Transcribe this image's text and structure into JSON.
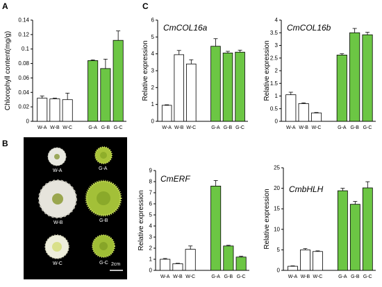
{
  "panels": {
    "a": "A",
    "b": "B",
    "c": "C"
  },
  "colors": {
    "white_bar": "#ffffff",
    "green_bar": "#6cc644",
    "axis": "#000000",
    "photo_bg": "#000000"
  },
  "photo": {
    "labels": [
      "W-A",
      "G-A",
      "W-B",
      "G-B",
      "W-C",
      "G-C"
    ],
    "scale_label": "2cm"
  },
  "chart_data": [
    {
      "type": "bar",
      "title": "",
      "xlabel": "",
      "ylabel": "Chlorophyll content(mg/g)",
      "categories": [
        "W-A",
        "W-B",
        "W-C",
        "G-A",
        "G-B",
        "G-C"
      ],
      "values": [
        0.032,
        0.031,
        0.03,
        0.084,
        0.073,
        0.112
      ],
      "errors": [
        0.003,
        0.001,
        0.009,
        0.001,
        0.013,
        0.013
      ],
      "ylim": [
        0,
        0.14
      ],
      "yticks": [
        "0",
        "0.02",
        "0.04",
        "0.06",
        "0.08",
        "0.1",
        "0.12",
        "0.14"
      ],
      "grid": false
    },
    {
      "type": "bar",
      "title": "CmCOL16a",
      "xlabel": "",
      "ylabel": "Relative expression",
      "categories": [
        "W-A",
        "W-B",
        "W-C",
        "G-A",
        "G-B",
        "G-C"
      ],
      "values": [
        0.95,
        3.95,
        3.4,
        4.45,
        4.05,
        4.1
      ],
      "errors": [
        0.03,
        0.25,
        0.25,
        0.45,
        0.1,
        0.12
      ],
      "ylim": [
        0,
        6
      ],
      "yticks": [
        "0",
        "1",
        "2",
        "3",
        "4",
        "5",
        "6"
      ],
      "grid": false
    },
    {
      "type": "bar",
      "title": "CmCOL16b",
      "xlabel": "",
      "ylabel": "Relative expression",
      "categories": [
        "W-A",
        "W-B",
        "W-C",
        "G-A",
        "G-B",
        "G-C"
      ],
      "values": [
        1.05,
        0.7,
        0.33,
        2.62,
        3.5,
        3.42
      ],
      "errors": [
        0.1,
        0.03,
        0.02,
        0.05,
        0.17,
        0.1
      ],
      "ylim": [
        0,
        4
      ],
      "yticks": [
        "0",
        "0.5",
        "1",
        "1.5",
        "2",
        "2.5",
        "3",
        "3.5",
        "4"
      ],
      "grid": false
    },
    {
      "type": "bar",
      "title": "CmERF",
      "xlabel": "",
      "ylabel": "Relative expression",
      "categories": [
        "W-A",
        "W-B",
        "W-C",
        "G-A",
        "G-B",
        "G-C"
      ],
      "values": [
        1.0,
        0.6,
        1.9,
        7.6,
        2.2,
        1.2
      ],
      "errors": [
        0.07,
        0.04,
        0.3,
        0.5,
        0.06,
        0.07
      ],
      "ylim": [
        0,
        9
      ],
      "yticks": [
        "0",
        "1",
        "2",
        "3",
        "4",
        "5",
        "6",
        "7",
        "8",
        "9"
      ],
      "grid": false
    },
    {
      "type": "bar",
      "title": "CmbHLH",
      "xlabel": "",
      "ylabel": "Relative expression",
      "categories": [
        "W-A",
        "W-B",
        "W-C",
        "G-A",
        "G-B",
        "G-C"
      ],
      "values": [
        1.0,
        5.0,
        4.6,
        19.4,
        16.1,
        20.1
      ],
      "errors": [
        0.1,
        0.3,
        0.15,
        0.6,
        0.7,
        1.5
      ],
      "ylim": [
        0,
        25
      ],
      "yticks": [
        "0",
        "5",
        "10",
        "15",
        "20",
        "25"
      ],
      "grid": false
    }
  ]
}
